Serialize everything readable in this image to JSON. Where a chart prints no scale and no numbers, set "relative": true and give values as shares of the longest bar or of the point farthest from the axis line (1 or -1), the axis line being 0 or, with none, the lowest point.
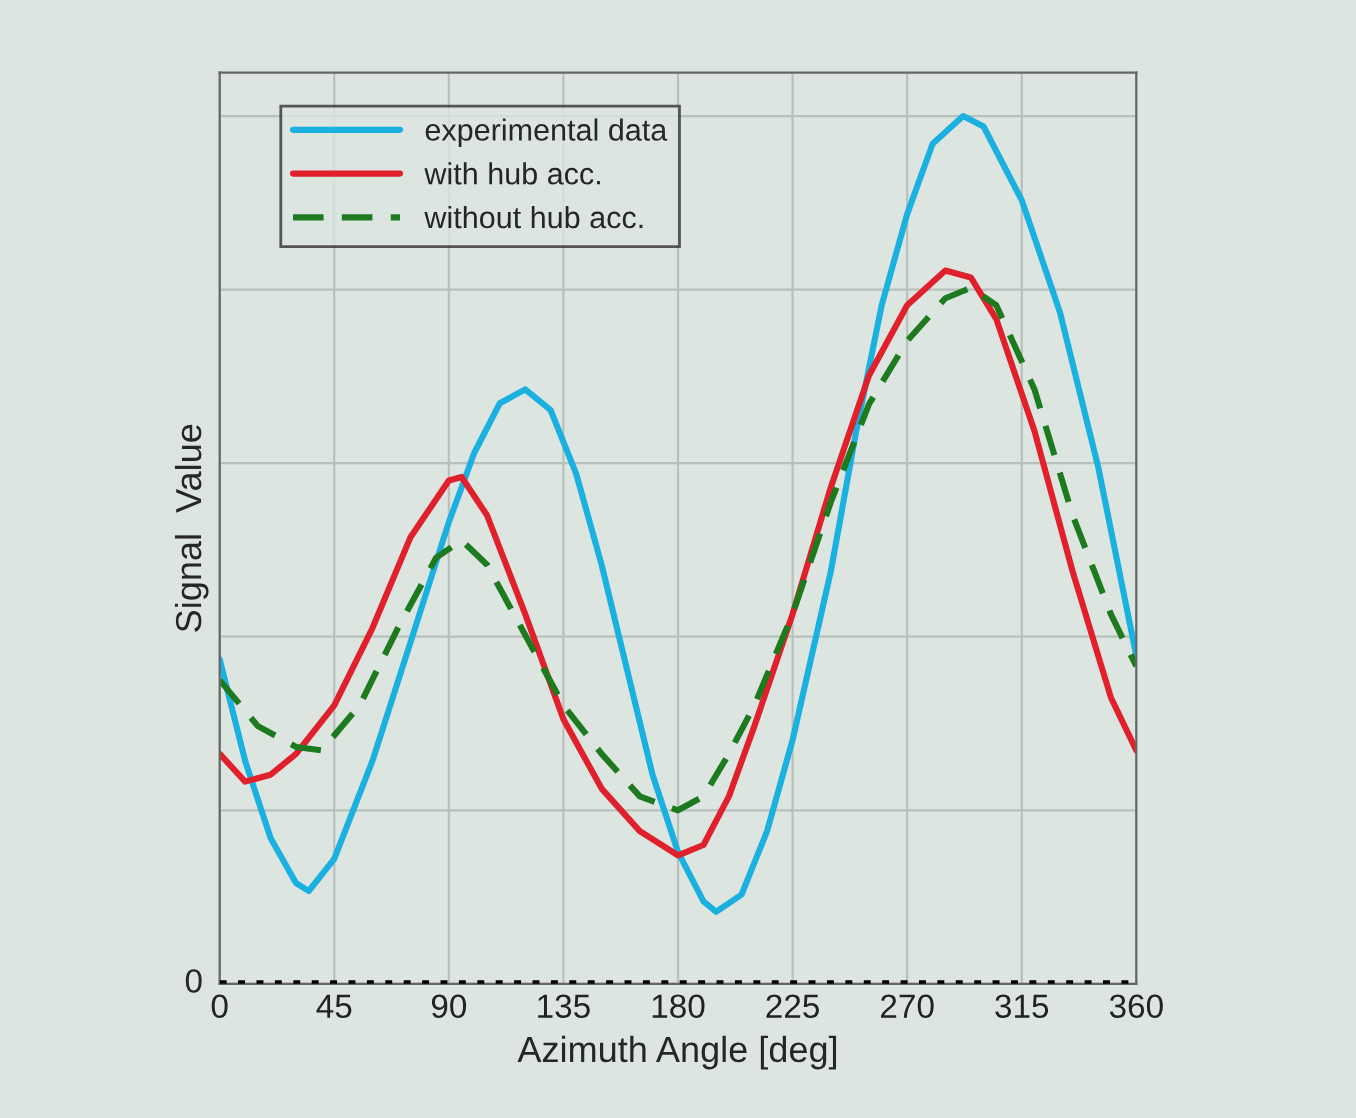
{
  "chart_data": {
    "type": "line",
    "relative": true,
    "xlabel": "Azimuth Angle [deg]",
    "ylabel": "Signal  Value",
    "annotations": [
      "0"
    ],
    "xlim": [
      0,
      360
    ],
    "xticks": [
      0,
      45,
      90,
      135,
      180,
      225,
      270,
      315,
      360
    ],
    "grid": true,
    "legend": "top left",
    "ref_lines": [
      {
        "axis": "y",
        "value": 0,
        "color": "#000000",
        "line_style": "dotted"
      }
    ],
    "series": [
      {
        "name": "experimental data",
        "color": "#1ab0e0",
        "line_style": "solid",
        "x": [
          0,
          10,
          20,
          30,
          35,
          45,
          60,
          75,
          90,
          100,
          110,
          120,
          130,
          140,
          150,
          160,
          170,
          180,
          190,
          195,
          205,
          215,
          225,
          240,
          250,
          260,
          270,
          280,
          292,
          300,
          315,
          330,
          345,
          360
        ],
        "values": [
          0.374,
          0.257,
          0.168,
          0.116,
          0.107,
          0.144,
          0.257,
          0.394,
          0.532,
          0.612,
          0.669,
          0.685,
          0.661,
          0.588,
          0.483,
          0.362,
          0.241,
          0.152,
          0.095,
          0.083,
          0.103,
          0.176,
          0.281,
          0.475,
          0.637,
          0.782,
          0.887,
          0.968,
          1,
          0.988,
          0.903,
          0.774,
          0.596,
          0.378
        ]
      },
      {
        "name": "with hub acc.",
        "color": "#e0202a",
        "line_style": "solid",
        "x": [
          0,
          10,
          20,
          30,
          45,
          60,
          75,
          90,
          95,
          105,
          120,
          135,
          150,
          165,
          180,
          190,
          200,
          210,
          225,
          240,
          255,
          270,
          285,
          295,
          305,
          320,
          335,
          350,
          360
        ],
        "values": [
          0.265,
          0.233,
          0.241,
          0.265,
          0.321,
          0.41,
          0.515,
          0.58,
          0.584,
          0.54,
          0.426,
          0.305,
          0.225,
          0.176,
          0.148,
          0.16,
          0.216,
          0.297,
          0.426,
          0.572,
          0.701,
          0.782,
          0.822,
          0.814,
          0.766,
          0.637,
          0.475,
          0.33,
          0.269
        ]
      },
      {
        "name": "without hub acc.",
        "color": "#1e7a1e",
        "line_style": "dashed",
        "x": [
          0,
          15,
          30,
          40,
          55,
          70,
          85,
          95,
          105,
          120,
          135,
          150,
          165,
          180,
          190,
          200,
          210,
          225,
          240,
          255,
          270,
          285,
          295,
          305,
          320,
          335,
          350,
          360
        ],
        "values": [
          0.35,
          0.297,
          0.273,
          0.269,
          0.321,
          0.41,
          0.491,
          0.511,
          0.483,
          0.402,
          0.321,
          0.265,
          0.216,
          0.2,
          0.216,
          0.265,
          0.321,
          0.426,
          0.555,
          0.668,
          0.741,
          0.79,
          0.802,
          0.782,
          0.685,
          0.54,
          0.426,
          0.366
        ]
      }
    ]
  }
}
